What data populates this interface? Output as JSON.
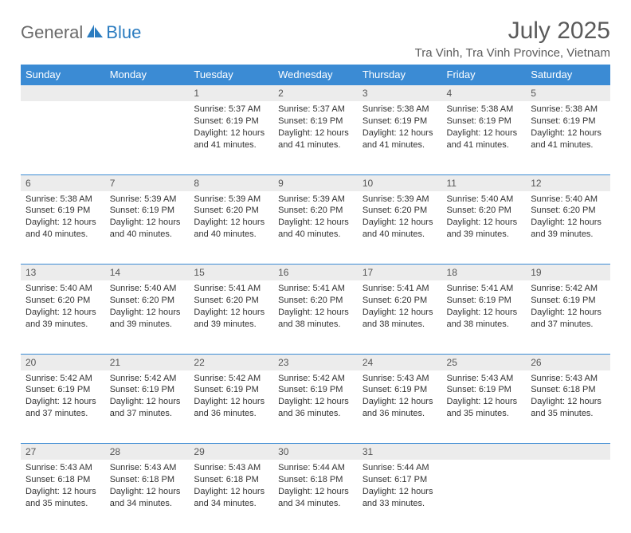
{
  "brand": {
    "text_general": "General",
    "text_blue": "Blue",
    "icon_fill": "#2b7cc0"
  },
  "title": {
    "month_year": "July 2025",
    "location": "Tra Vinh, Tra Vinh Province, Vietnam"
  },
  "colors": {
    "header_bg": "#3b8bd4",
    "header_fg": "#ffffff",
    "daynum_bg": "#ececec",
    "daynum_fg": "#555555",
    "rule": "#3b8bd4",
    "text": "#333333",
    "page_bg": "#ffffff"
  },
  "weekdays": [
    "Sunday",
    "Monday",
    "Tuesday",
    "Wednesday",
    "Thursday",
    "Friday",
    "Saturday"
  ],
  "weeks": [
    [
      null,
      null,
      {
        "n": "1",
        "sr": "5:37 AM",
        "ss": "6:19 PM",
        "dl": "12 hours and 41 minutes."
      },
      {
        "n": "2",
        "sr": "5:37 AM",
        "ss": "6:19 PM",
        "dl": "12 hours and 41 minutes."
      },
      {
        "n": "3",
        "sr": "5:38 AM",
        "ss": "6:19 PM",
        "dl": "12 hours and 41 minutes."
      },
      {
        "n": "4",
        "sr": "5:38 AM",
        "ss": "6:19 PM",
        "dl": "12 hours and 41 minutes."
      },
      {
        "n": "5",
        "sr": "5:38 AM",
        "ss": "6:19 PM",
        "dl": "12 hours and 41 minutes."
      }
    ],
    [
      {
        "n": "6",
        "sr": "5:38 AM",
        "ss": "6:19 PM",
        "dl": "12 hours and 40 minutes."
      },
      {
        "n": "7",
        "sr": "5:39 AM",
        "ss": "6:19 PM",
        "dl": "12 hours and 40 minutes."
      },
      {
        "n": "8",
        "sr": "5:39 AM",
        "ss": "6:20 PM",
        "dl": "12 hours and 40 minutes."
      },
      {
        "n": "9",
        "sr": "5:39 AM",
        "ss": "6:20 PM",
        "dl": "12 hours and 40 minutes."
      },
      {
        "n": "10",
        "sr": "5:39 AM",
        "ss": "6:20 PM",
        "dl": "12 hours and 40 minutes."
      },
      {
        "n": "11",
        "sr": "5:40 AM",
        "ss": "6:20 PM",
        "dl": "12 hours and 39 minutes."
      },
      {
        "n": "12",
        "sr": "5:40 AM",
        "ss": "6:20 PM",
        "dl": "12 hours and 39 minutes."
      }
    ],
    [
      {
        "n": "13",
        "sr": "5:40 AM",
        "ss": "6:20 PM",
        "dl": "12 hours and 39 minutes."
      },
      {
        "n": "14",
        "sr": "5:40 AM",
        "ss": "6:20 PM",
        "dl": "12 hours and 39 minutes."
      },
      {
        "n": "15",
        "sr": "5:41 AM",
        "ss": "6:20 PM",
        "dl": "12 hours and 39 minutes."
      },
      {
        "n": "16",
        "sr": "5:41 AM",
        "ss": "6:20 PM",
        "dl": "12 hours and 38 minutes."
      },
      {
        "n": "17",
        "sr": "5:41 AM",
        "ss": "6:20 PM",
        "dl": "12 hours and 38 minutes."
      },
      {
        "n": "18",
        "sr": "5:41 AM",
        "ss": "6:19 PM",
        "dl": "12 hours and 38 minutes."
      },
      {
        "n": "19",
        "sr": "5:42 AM",
        "ss": "6:19 PM",
        "dl": "12 hours and 37 minutes."
      }
    ],
    [
      {
        "n": "20",
        "sr": "5:42 AM",
        "ss": "6:19 PM",
        "dl": "12 hours and 37 minutes."
      },
      {
        "n": "21",
        "sr": "5:42 AM",
        "ss": "6:19 PM",
        "dl": "12 hours and 37 minutes."
      },
      {
        "n": "22",
        "sr": "5:42 AM",
        "ss": "6:19 PM",
        "dl": "12 hours and 36 minutes."
      },
      {
        "n": "23",
        "sr": "5:42 AM",
        "ss": "6:19 PM",
        "dl": "12 hours and 36 minutes."
      },
      {
        "n": "24",
        "sr": "5:43 AM",
        "ss": "6:19 PM",
        "dl": "12 hours and 36 minutes."
      },
      {
        "n": "25",
        "sr": "5:43 AM",
        "ss": "6:19 PM",
        "dl": "12 hours and 35 minutes."
      },
      {
        "n": "26",
        "sr": "5:43 AM",
        "ss": "6:18 PM",
        "dl": "12 hours and 35 minutes."
      }
    ],
    [
      {
        "n": "27",
        "sr": "5:43 AM",
        "ss": "6:18 PM",
        "dl": "12 hours and 35 minutes."
      },
      {
        "n": "28",
        "sr": "5:43 AM",
        "ss": "6:18 PM",
        "dl": "12 hours and 34 minutes."
      },
      {
        "n": "29",
        "sr": "5:43 AM",
        "ss": "6:18 PM",
        "dl": "12 hours and 34 minutes."
      },
      {
        "n": "30",
        "sr": "5:44 AM",
        "ss": "6:18 PM",
        "dl": "12 hours and 34 minutes."
      },
      {
        "n": "31",
        "sr": "5:44 AM",
        "ss": "6:17 PM",
        "dl": "12 hours and 33 minutes."
      },
      null,
      null
    ]
  ],
  "labels": {
    "sunrise": "Sunrise:",
    "sunset": "Sunset:",
    "daylight": "Daylight:"
  }
}
